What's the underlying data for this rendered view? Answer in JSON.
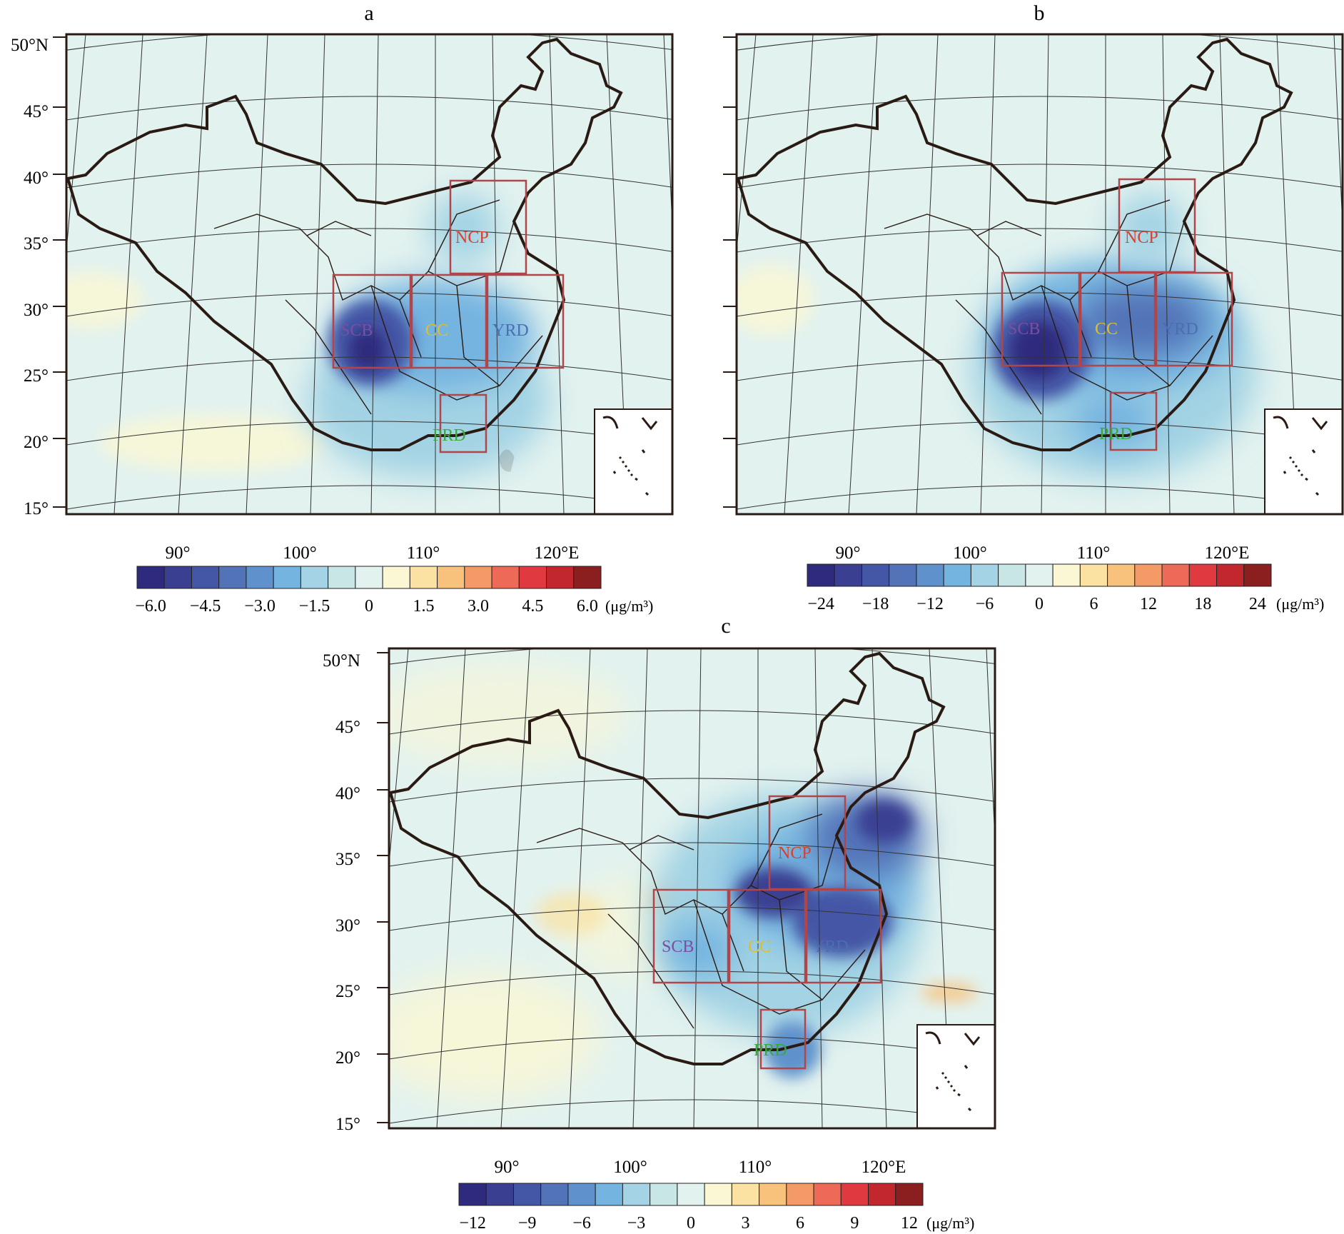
{
  "panels": [
    {
      "id": "a",
      "title": "a",
      "lat_labels": [
        "50°N",
        "45°",
        "40°",
        "35°",
        "30°",
        "25°",
        "20°",
        "15°"
      ],
      "lon_labels": [
        "90°",
        "100°",
        "110°",
        "120°E"
      ],
      "regions": [
        {
          "name": "NCP",
          "color": "#d9402e"
        },
        {
          "name": "SCB",
          "color": "#7a4fa0"
        },
        {
          "name": "CC",
          "color": "#e0c020"
        },
        {
          "name": "YRD",
          "color": "#4a6fb0"
        },
        {
          "name": "PRD",
          "color": "#3aa83a"
        }
      ],
      "colorbar": {
        "tick_labels": [
          "-6.0",
          "-4.5",
          "-3.0",
          "-1.5",
          "0",
          "1.5",
          "3.0",
          "4.5",
          "6.0"
        ],
        "unit": "(μg/m³)"
      }
    },
    {
      "id": "b",
      "title": "b",
      "lat_labels": [
        "50°N",
        "45°",
        "40°",
        "35°",
        "30°",
        "25°",
        "20°",
        "15°"
      ],
      "lon_labels": [
        "90°",
        "100°",
        "110°",
        "120°E"
      ],
      "regions": [
        {
          "name": "NCP",
          "color": "#d9402e"
        },
        {
          "name": "SCB",
          "color": "#7a4fa0"
        },
        {
          "name": "CC",
          "color": "#e0c020"
        },
        {
          "name": "YRD",
          "color": "#4a6fb0"
        },
        {
          "name": "PRD",
          "color": "#3aa83a"
        }
      ],
      "colorbar": {
        "tick_labels": [
          "-24",
          "-18",
          "-12",
          "-6",
          "0",
          "6",
          "12",
          "18",
          "24"
        ],
        "unit": "(μg/m³)"
      }
    },
    {
      "id": "c",
      "title": "c",
      "lat_labels": [
        "50°N",
        "45°",
        "40°",
        "35°",
        "30°",
        "25°",
        "20°",
        "15°"
      ],
      "lon_labels": [
        "90°",
        "100°",
        "110°",
        "120°E"
      ],
      "regions": [
        {
          "name": "NCP",
          "color": "#d9402e"
        },
        {
          "name": "SCB",
          "color": "#7a4fa0"
        },
        {
          "name": "CC",
          "color": "#e0c020"
        },
        {
          "name": "YRD",
          "color": "#4a6fb0"
        },
        {
          "name": "PRD",
          "color": "#3aa83a"
        }
      ],
      "colorbar": {
        "tick_labels": [
          "-12",
          "-9",
          "-6",
          "-3",
          "0",
          "3",
          "6",
          "9",
          "12"
        ],
        "unit": "(μg/m³)"
      }
    }
  ],
  "colors": {
    "palette": [
      "#2e2a7e",
      "#3a3f92",
      "#4457a6",
      "#5273b8",
      "#5f92cc",
      "#74b4e0",
      "#a3d3e4",
      "#c8e6e6",
      "#e2f2ef",
      "#fbf7d4",
      "#fbe2a2",
      "#f8c27c",
      "#f49a66",
      "#ec6a56",
      "#e03a40",
      "#c1272d",
      "#8b1e1e"
    ],
    "background_field": "#e2f2ef",
    "region_box": "#b0454a",
    "border": "#2a1a14"
  }
}
